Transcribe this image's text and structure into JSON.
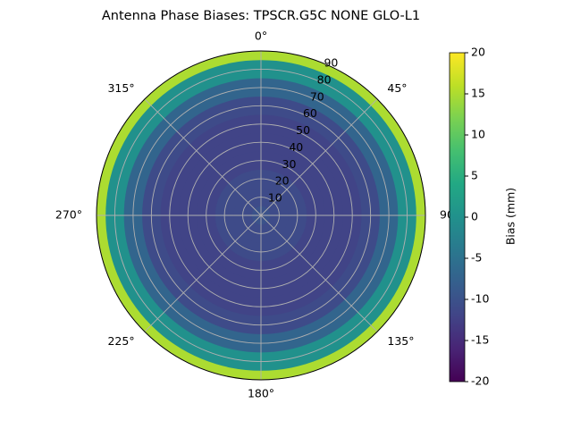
{
  "chart_data": {
    "type": "polar_heatmap",
    "title": "Antenna Phase Biases: TPSCR.G5C        NONE GLO-L1",
    "zenith": [
      0,
      10,
      20,
      30,
      40,
      50,
      60,
      70,
      80,
      90
    ],
    "values": [
      -10,
      -11,
      -11,
      -12,
      -12,
      -12,
      -11,
      -7,
      0,
      15
    ],
    "rlim": [
      0,
      90
    ],
    "rticks": [
      10,
      20,
      30,
      40,
      50,
      60,
      70,
      80,
      90
    ],
    "thetaticks": [
      {
        "value": 0,
        "label": "0°"
      },
      {
        "value": 45,
        "label": "45°"
      },
      {
        "value": 90,
        "label": "90°"
      },
      {
        "value": 135,
        "label": "135°"
      },
      {
        "value": 180,
        "label": "180°"
      },
      {
        "value": 225,
        "label": "225°"
      },
      {
        "value": 270,
        "label": "270°"
      },
      {
        "value": 315,
        "label": "315°"
      }
    ],
    "colormap": "viridis",
    "clim": [
      -20,
      20
    ],
    "cticks": [
      -20,
      -15,
      -10,
      -5,
      0,
      5,
      10,
      15,
      20
    ],
    "colorbar_label": "Bias (mm)",
    "grid": true
  }
}
